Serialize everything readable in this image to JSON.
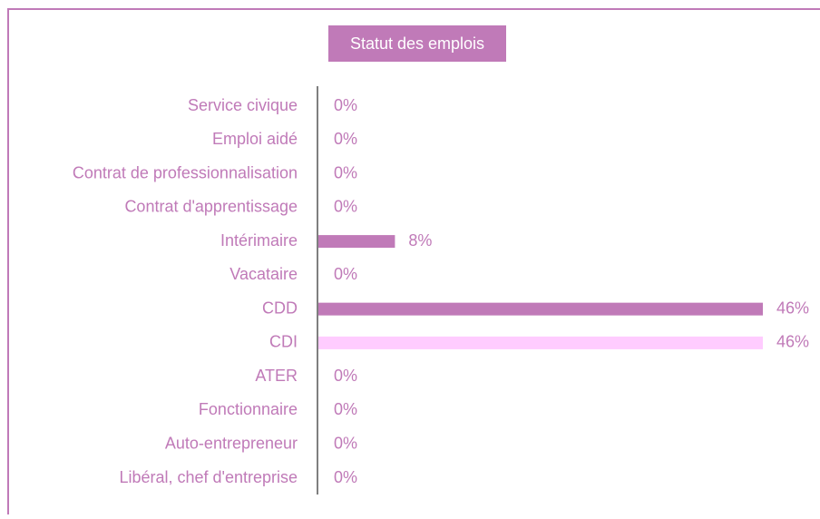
{
  "chart_data": {
    "type": "hbar",
    "title": "Statut des emplois",
    "categories": [
      "Service civique",
      "Emploi aidé",
      "Contrat de professionnalisation",
      "Contrat d'apprentissage",
      "Intérimaire",
      "Vacataire",
      "CDD",
      "CDI",
      "ATER",
      "Fonctionnaire",
      "Auto-entrepreneur",
      "Libéral, chef d'entreprise"
    ],
    "values": [
      0,
      0,
      0,
      0,
      8,
      0,
      46,
      46,
      0,
      0,
      0,
      0
    ],
    "value_labels": [
      "0%",
      "0%",
      "0%",
      "0%",
      "8%",
      "0%",
      "46%",
      "46%",
      "0%",
      "0%",
      "0%",
      "0%"
    ],
    "colors": [
      "#c07ab8",
      "#c07ab8",
      "#c07ab8",
      "#c07ab8",
      "#c07ab8",
      "#c07ab8",
      "#c07ab8",
      "#ffccff",
      "#c07ab8",
      "#c07ab8",
      "#c07ab8",
      "#c07ab8"
    ]
  }
}
